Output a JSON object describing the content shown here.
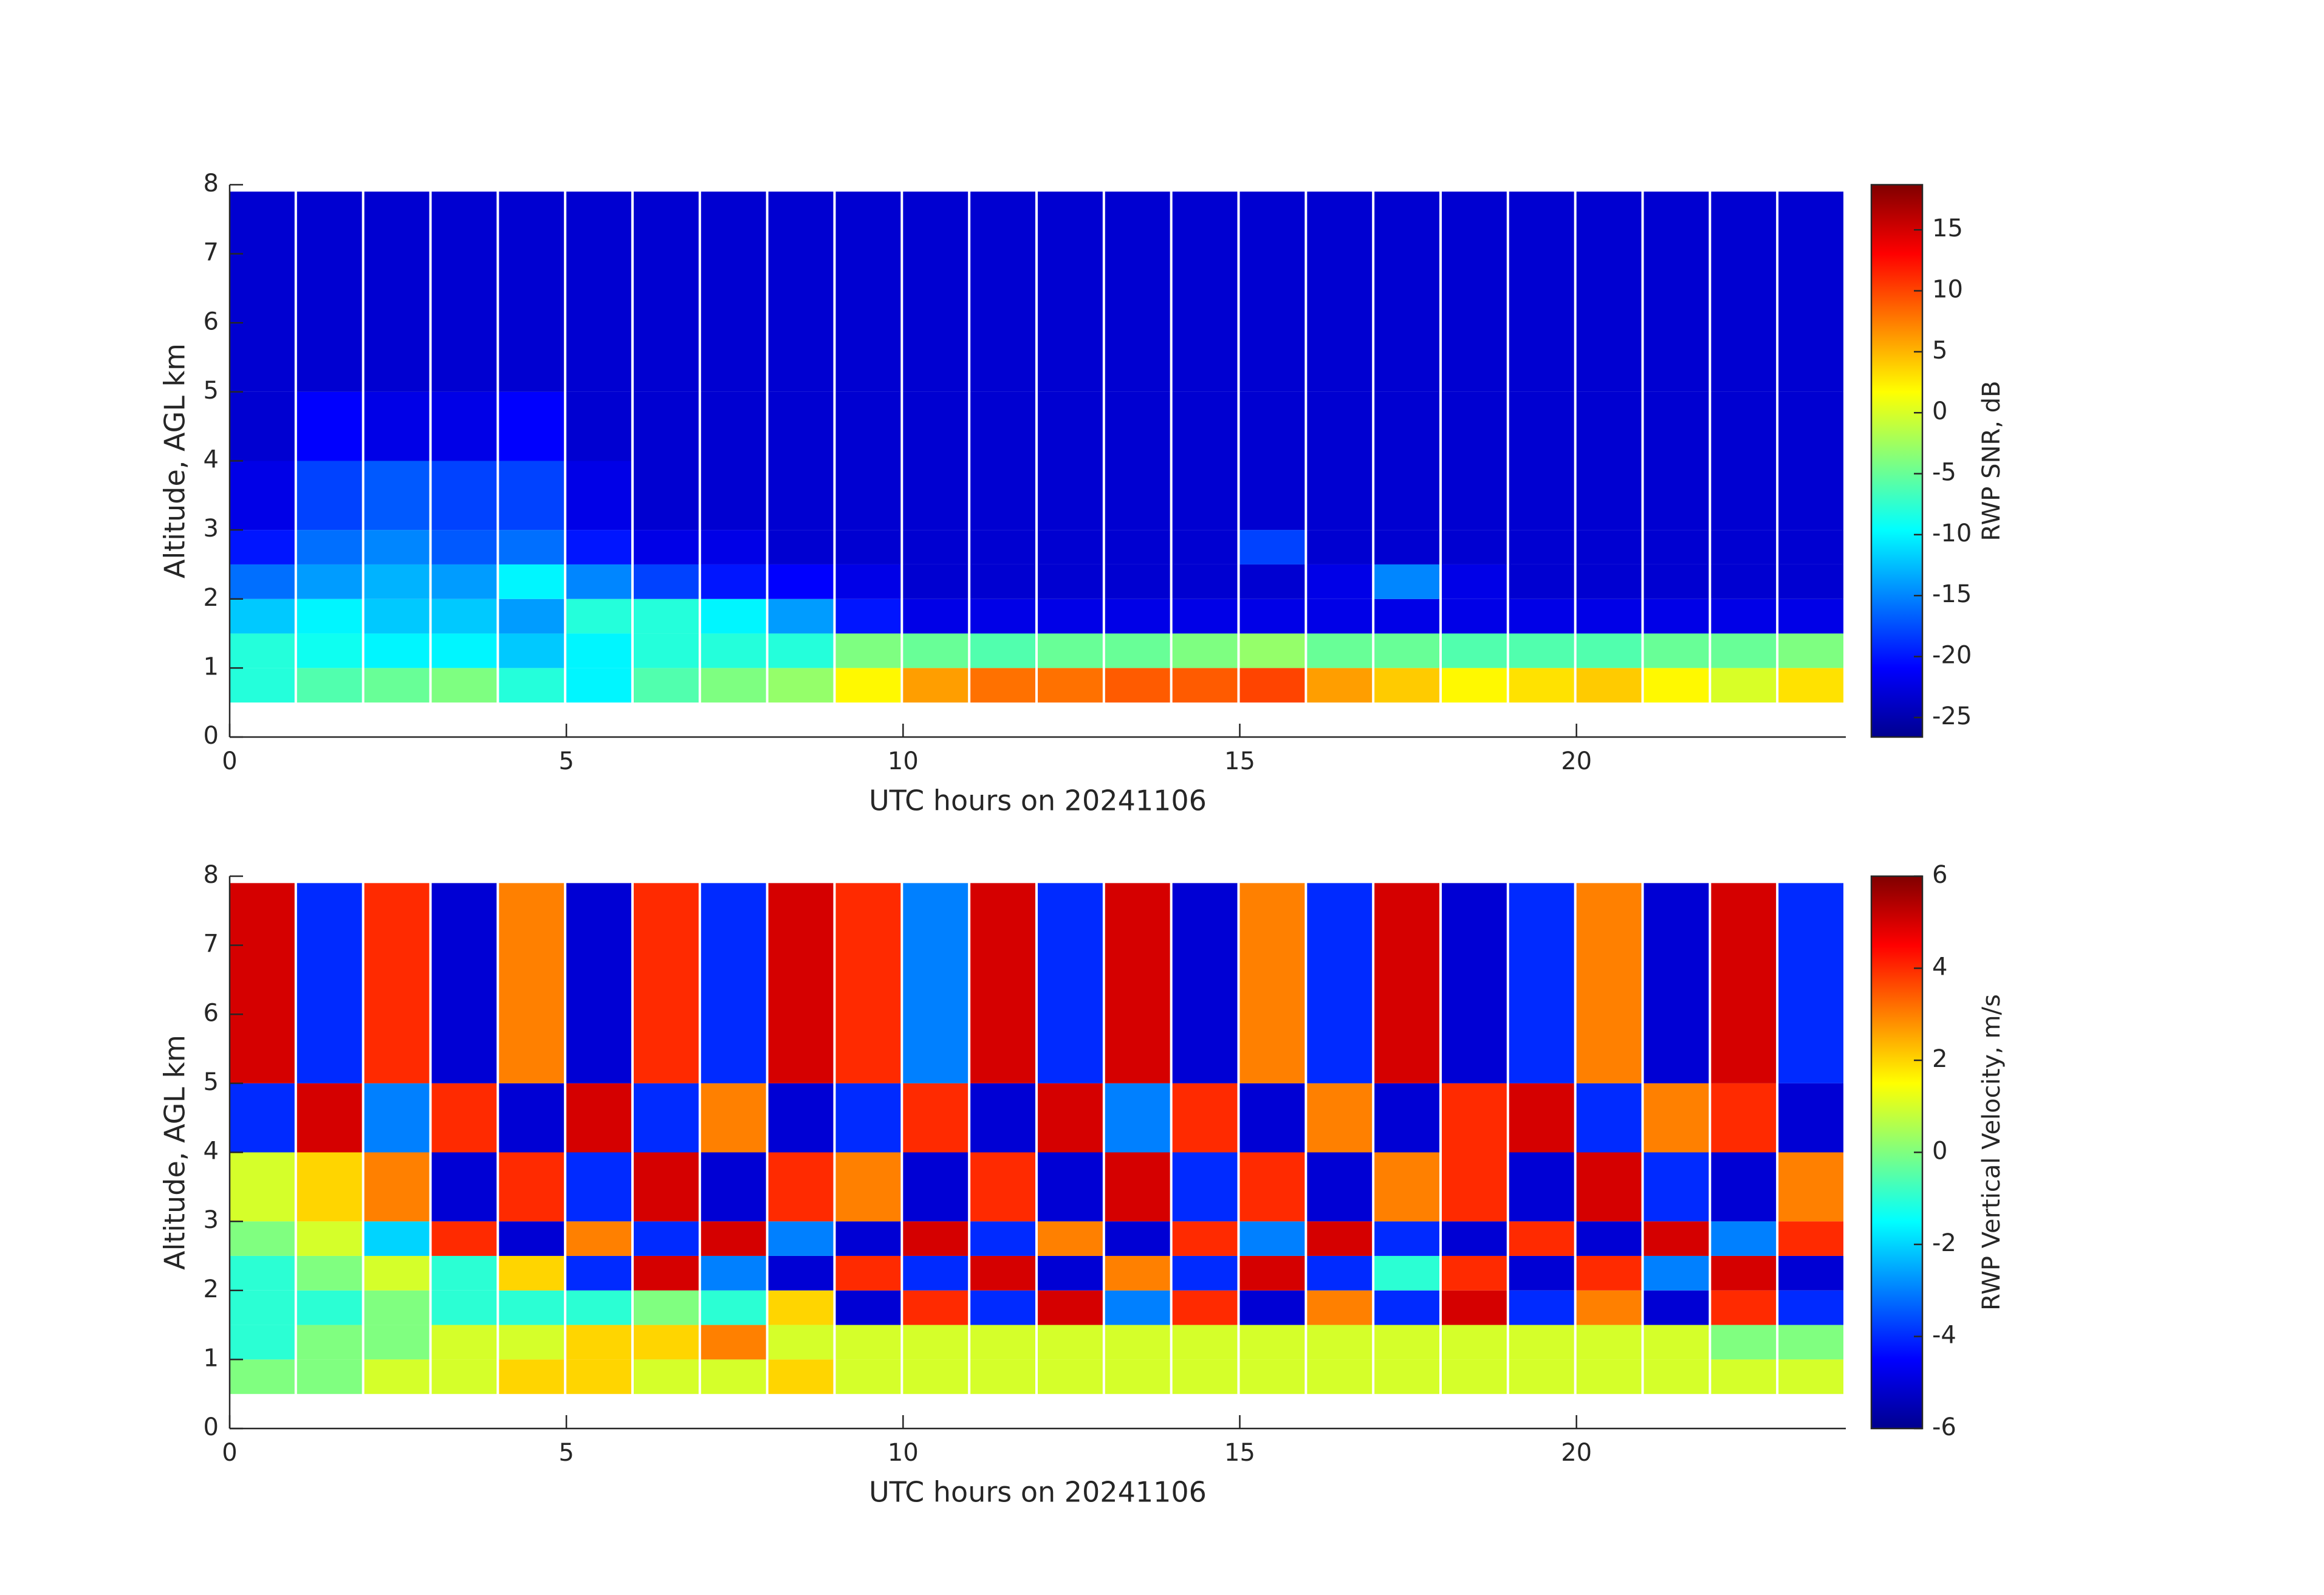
{
  "chart_data": [
    {
      "type": "heatmap",
      "xlabel": "UTC hours on 20241106",
      "ylabel": "Altitude, AGL km",
      "xlim": [
        0,
        24
      ],
      "xticks": [
        0,
        5,
        10,
        15,
        20
      ],
      "ylim": [
        0,
        8
      ],
      "yticks": [
        0,
        1,
        2,
        3,
        4,
        5,
        6,
        7,
        8
      ],
      "x_edges": [
        0,
        1,
        2,
        3,
        4,
        5,
        6,
        7,
        8,
        9,
        10,
        11,
        12,
        13,
        14,
        15,
        16,
        17,
        18,
        19,
        20,
        21,
        22,
        23,
        24
      ],
      "y_edges": [
        0.5,
        1,
        1.5,
        2,
        2.5,
        3,
        4,
        5,
        7.9
      ],
      "colormap": "jet",
      "colorbar": {
        "label": "RWP SNR, dB",
        "lim": [
          -26.6,
          18.7
        ],
        "ticks": [
          -25,
          -20,
          -15,
          -10,
          -5,
          0,
          5,
          10,
          15
        ]
      },
      "values": [
        [
          -8,
          -6,
          -5,
          -4,
          -8,
          -10,
          -6,
          -4,
          -3,
          2,
          6,
          8,
          8,
          9,
          9,
          10,
          6,
          4,
          2,
          3,
          4,
          2,
          0,
          3
        ],
        [
          -8,
          -9,
          -10,
          -10,
          -12,
          -10,
          -8,
          -8,
          -8,
          -4,
          -5,
          -6,
          -5,
          -5,
          -4,
          -3,
          -5,
          -5,
          -6,
          -6,
          -6,
          -5,
          -5,
          -4
        ],
        [
          -12,
          -10,
          -12,
          -12,
          -14,
          -8,
          -8,
          -10,
          -14,
          -20,
          -22,
          -22,
          -22,
          -22,
          -22,
          -22,
          -22,
          -22,
          -22,
          -22,
          -22,
          -22,
          -22,
          -22
        ],
        [
          -16,
          -14,
          -13,
          -14,
          -10,
          -15,
          -18,
          -20,
          -21,
          -22,
          -23,
          -23,
          -23,
          -23,
          -23,
          -23,
          -22,
          -15,
          -22,
          -23,
          -23,
          -23,
          -23,
          -23
        ],
        [
          -20,
          -16,
          -15,
          -17,
          -16,
          -20,
          -22,
          -22,
          -23,
          -23,
          -23,
          -23,
          -23,
          -23,
          -23,
          -18,
          -23,
          -23,
          -23,
          -23,
          -23,
          -23,
          -23,
          -23
        ],
        [
          -22,
          -18,
          -17,
          -18,
          -18,
          -22,
          -23,
          -23,
          -23,
          -23,
          -23,
          -23,
          -23,
          -23,
          -23,
          -23,
          -23,
          -23,
          -23,
          -23,
          -23,
          -23,
          -23,
          -23
        ],
        [
          -23,
          -21,
          -22,
          -22,
          -21,
          -23,
          -23,
          -23,
          -23,
          -23,
          -23,
          -23,
          -23,
          -23,
          -23,
          -23,
          -23,
          -23,
          -23,
          -23,
          -23,
          -23,
          -23,
          -23
        ],
        [
          -23,
          -23,
          -23,
          -23,
          -23,
          -23,
          -23,
          -23,
          -23,
          -23,
          -23,
          -23,
          -23,
          -23,
          -23,
          -23,
          -23,
          -23,
          -23,
          -23,
          -23,
          -23,
          -23,
          -23
        ]
      ]
    },
    {
      "type": "heatmap",
      "xlabel": "UTC hours on 20241106",
      "ylabel": "Altitude, AGL km",
      "xlim": [
        0,
        24
      ],
      "xticks": [
        0,
        5,
        10,
        15,
        20
      ],
      "ylim": [
        0,
        8
      ],
      "yticks": [
        0,
        1,
        2,
        3,
        4,
        5,
        6,
        7,
        8
      ],
      "x_edges": [
        0,
        1,
        2,
        3,
        4,
        5,
        6,
        7,
        8,
        9,
        10,
        11,
        12,
        13,
        14,
        15,
        16,
        17,
        18,
        19,
        20,
        21,
        22,
        23,
        24
      ],
      "y_edges": [
        0.5,
        1,
        1.5,
        2,
        2.5,
        3,
        4,
        5,
        7.9
      ],
      "colormap": "jet",
      "colorbar": {
        "label": "RWP Vertical Velocity, m/s",
        "lim": [
          -6,
          6
        ],
        "ticks": [
          -6,
          -4,
          -2,
          0,
          2,
          4,
          6
        ]
      },
      "values": [
        [
          0,
          0,
          1,
          1,
          2,
          2,
          1,
          1,
          2,
          1,
          1,
          1,
          1,
          1,
          1,
          1,
          1,
          1,
          1,
          1,
          1,
          1,
          1,
          1
        ],
        [
          -1,
          0,
          0,
          1,
          1,
          2,
          2,
          3,
          1,
          1,
          1,
          1,
          1,
          1,
          1,
          1,
          1,
          1,
          1,
          1,
          1,
          1,
          0,
          0
        ],
        [
          -1,
          -1,
          0,
          -1,
          -1,
          -1,
          0,
          -1,
          2,
          -5,
          4,
          -4,
          5,
          -3,
          4,
          -5,
          3,
          -4,
          5,
          -4,
          3,
          -5,
          4,
          -4
        ],
        [
          -1,
          0,
          1,
          -1,
          2,
          -4,
          5,
          -3,
          -5,
          4,
          -4,
          5,
          -5,
          3,
          -4,
          5,
          -4,
          -1,
          4,
          -5,
          4,
          -3,
          5,
          -5
        ],
        [
          0,
          1,
          -2,
          4,
          -5,
          3,
          -4,
          5,
          -3,
          -5,
          5,
          -4,
          3,
          -5,
          4,
          -3,
          5,
          -4,
          -5,
          4,
          -5,
          5,
          -3,
          4
        ],
        [
          1,
          2,
          3,
          -5,
          4,
          -4,
          5,
          -5,
          4,
          3,
          -5,
          4,
          -5,
          5,
          -4,
          4,
          -5,
          3,
          4,
          -5,
          5,
          -4,
          -5,
          3
        ],
        [
          -4,
          5,
          -3,
          4,
          -5,
          5,
          -4,
          3,
          -5,
          -4,
          4,
          -5,
          5,
          -3,
          4,
          -5,
          3,
          -5,
          4,
          5,
          -4,
          3,
          4,
          -5
        ],
        [
          5,
          -4,
          4,
          -5,
          3,
          -5,
          4,
          -4,
          5,
          4,
          -3,
          5,
          -4,
          5,
          -5,
          3,
          -4,
          5,
          -5,
          -4,
          3,
          -5,
          5,
          -4
        ]
      ]
    }
  ]
}
